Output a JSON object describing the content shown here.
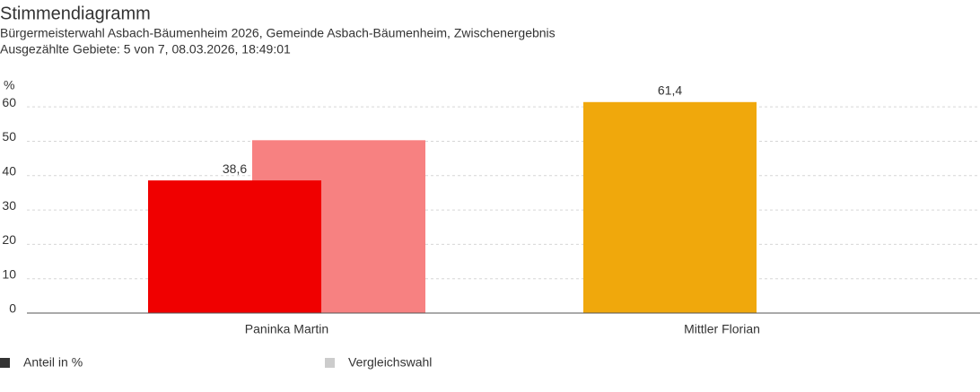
{
  "chart_data": {
    "type": "bar",
    "title": "Stimmendiagramm",
    "subtitle": [
      "Bürgermeisterwahl Asbach-Bäumenheim 2026, Gemeinde Asbach-Bäumenheim, Zwischenergebnis",
      "Ausgezählte Gebiete: 5 von 7, 08.03.2026, 18:49:01"
    ],
    "y_label": "%",
    "categories": [
      "Paninka Martin",
      "Mittler Florian"
    ],
    "series": [
      {
        "name": "Anteil in %",
        "color": "#333333",
        "bar_colors": [
          "#f00000",
          "#f0a80c"
        ],
        "values": [
          38.6,
          61.4
        ],
        "value_labels": [
          "38,6",
          "61,4"
        ]
      },
      {
        "name": "Vergleichswahl",
        "color": "#cccccc",
        "bar_colors": [
          "#f78181",
          null
        ],
        "values": [
          50.3,
          null
        ]
      }
    ],
    "ylim": [
      0,
      65
    ],
    "yticks": [
      0,
      10,
      20,
      30,
      40,
      50,
      60
    ],
    "grid": true
  }
}
